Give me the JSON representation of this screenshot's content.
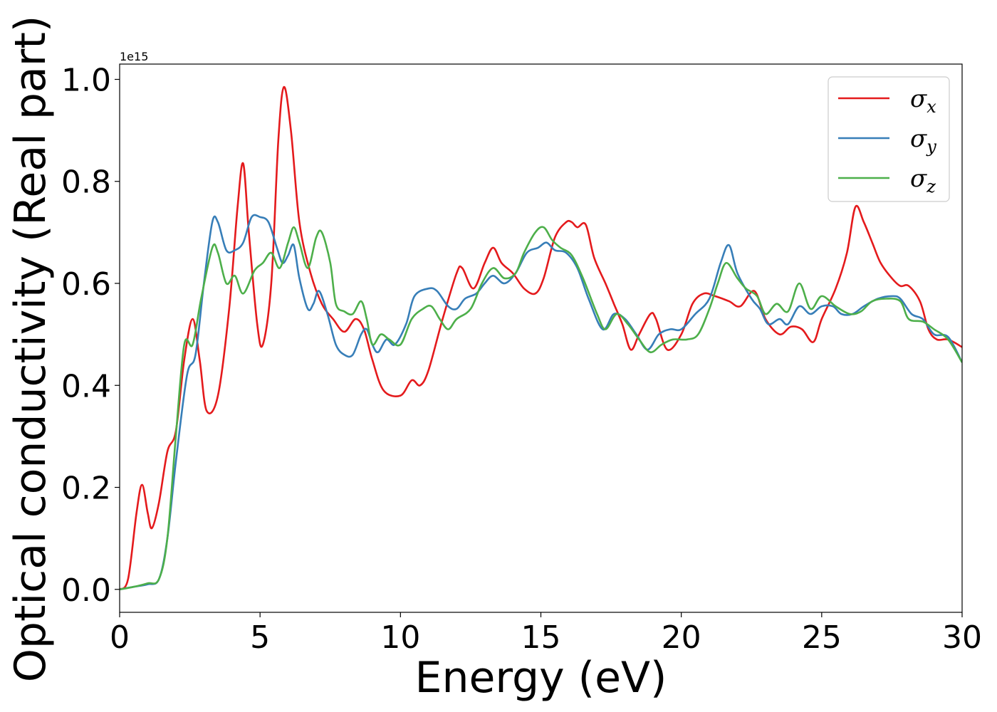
{
  "chart_data": {
    "type": "line",
    "title": "",
    "xlabel": "Energy (eV)",
    "ylabel": "Optical conductivity (Real part)",
    "xlim": [
      0,
      30
    ],
    "ylim": [
      -0.045,
      1.03
    ],
    "y_scale_label": "1e15",
    "xticks": [
      0,
      5,
      10,
      15,
      20,
      25,
      30
    ],
    "xtick_labels": [
      "0",
      "5",
      "10",
      "15",
      "20",
      "25",
      "30"
    ],
    "yticks": [
      0.0,
      0.2,
      0.4,
      0.6,
      0.8,
      1.0
    ],
    "ytick_labels": [
      "0.0",
      "0.2",
      "0.4",
      "0.6",
      "0.8",
      "1.0"
    ],
    "grid": false,
    "legend_position": "top-right",
    "series": [
      {
        "name": "σx",
        "symbol": "σ",
        "subscript": "x",
        "color": "#e41a1c",
        "points": [
          [
            0,
            0
          ],
          [
            0.3,
            0.02
          ],
          [
            0.6,
            0.15
          ],
          [
            0.8,
            0.205
          ],
          [
            1.0,
            0.15
          ],
          [
            1.15,
            0.12
          ],
          [
            1.4,
            0.17
          ],
          [
            1.7,
            0.27
          ],
          [
            2.0,
            0.31
          ],
          [
            2.3,
            0.45
          ],
          [
            2.6,
            0.53
          ],
          [
            2.85,
            0.45
          ],
          [
            3.1,
            0.35
          ],
          [
            3.5,
            0.38
          ],
          [
            3.9,
            0.55
          ],
          [
            4.2,
            0.75
          ],
          [
            4.4,
            0.835
          ],
          [
            4.6,
            0.7
          ],
          [
            4.9,
            0.52
          ],
          [
            5.1,
            0.48
          ],
          [
            5.4,
            0.6
          ],
          [
            5.65,
            0.88
          ],
          [
            5.85,
            0.985
          ],
          [
            6.1,
            0.9
          ],
          [
            6.4,
            0.72
          ],
          [
            6.8,
            0.62
          ],
          [
            7.2,
            0.56
          ],
          [
            7.6,
            0.53
          ],
          [
            8.0,
            0.505
          ],
          [
            8.4,
            0.53
          ],
          [
            8.7,
            0.51
          ],
          [
            9.0,
            0.45
          ],
          [
            9.4,
            0.39
          ],
          [
            10.0,
            0.38
          ],
          [
            10.4,
            0.41
          ],
          [
            10.7,
            0.4
          ],
          [
            11.0,
            0.43
          ],
          [
            11.5,
            0.53
          ],
          [
            12.0,
            0.62
          ],
          [
            12.2,
            0.63
          ],
          [
            12.6,
            0.59
          ],
          [
            13.0,
            0.64
          ],
          [
            13.3,
            0.67
          ],
          [
            13.6,
            0.64
          ],
          [
            14.0,
            0.62
          ],
          [
            14.4,
            0.59
          ],
          [
            14.8,
            0.58
          ],
          [
            15.1,
            0.61
          ],
          [
            15.5,
            0.69
          ],
          [
            15.9,
            0.72
          ],
          [
            16.1,
            0.72
          ],
          [
            16.3,
            0.71
          ],
          [
            16.6,
            0.715
          ],
          [
            16.9,
            0.65
          ],
          [
            17.3,
            0.6
          ],
          [
            17.6,
            0.56
          ],
          [
            17.9,
            0.52
          ],
          [
            18.2,
            0.47
          ],
          [
            18.5,
            0.5
          ],
          [
            18.9,
            0.54
          ],
          [
            19.1,
            0.53
          ],
          [
            19.5,
            0.47
          ],
          [
            20.0,
            0.5
          ],
          [
            20.4,
            0.56
          ],
          [
            20.8,
            0.58
          ],
          [
            21.2,
            0.575
          ],
          [
            21.7,
            0.565
          ],
          [
            22.1,
            0.555
          ],
          [
            22.6,
            0.585
          ],
          [
            23.0,
            0.53
          ],
          [
            23.5,
            0.5
          ],
          [
            23.9,
            0.515
          ],
          [
            24.3,
            0.51
          ],
          [
            24.7,
            0.485
          ],
          [
            25.0,
            0.53
          ],
          [
            25.5,
            0.59
          ],
          [
            25.9,
            0.66
          ],
          [
            26.2,
            0.75
          ],
          [
            26.5,
            0.72
          ],
          [
            26.8,
            0.68
          ],
          [
            27.1,
            0.64
          ],
          [
            27.5,
            0.61
          ],
          [
            27.8,
            0.595
          ],
          [
            28.1,
            0.595
          ],
          [
            28.5,
            0.565
          ],
          [
            28.8,
            0.51
          ],
          [
            29.1,
            0.49
          ],
          [
            29.5,
            0.49
          ],
          [
            30.0,
            0.475
          ]
        ]
      },
      {
        "name": "σy",
        "symbol": "σ",
        "subscript": "y",
        "color": "#377eb8",
        "points": [
          [
            0,
            0
          ],
          [
            0.5,
            0.005
          ],
          [
            1.0,
            0.01
          ],
          [
            1.4,
            0.02
          ],
          [
            1.7,
            0.1
          ],
          [
            2.0,
            0.25
          ],
          [
            2.4,
            0.42
          ],
          [
            2.7,
            0.46
          ],
          [
            3.0,
            0.6
          ],
          [
            3.3,
            0.72
          ],
          [
            3.5,
            0.72
          ],
          [
            3.8,
            0.665
          ],
          [
            4.1,
            0.665
          ],
          [
            4.4,
            0.68
          ],
          [
            4.7,
            0.73
          ],
          [
            5.0,
            0.73
          ],
          [
            5.3,
            0.72
          ],
          [
            5.6,
            0.67
          ],
          [
            5.8,
            0.64
          ],
          [
            6.0,
            0.655
          ],
          [
            6.2,
            0.675
          ],
          [
            6.4,
            0.61
          ],
          [
            6.7,
            0.55
          ],
          [
            6.9,
            0.56
          ],
          [
            7.1,
            0.585
          ],
          [
            7.4,
            0.54
          ],
          [
            7.7,
            0.48
          ],
          [
            8.0,
            0.46
          ],
          [
            8.3,
            0.46
          ],
          [
            8.6,
            0.5
          ],
          [
            8.8,
            0.51
          ],
          [
            9.0,
            0.48
          ],
          [
            9.2,
            0.465
          ],
          [
            9.5,
            0.49
          ],
          [
            9.8,
            0.48
          ],
          [
            10.2,
            0.52
          ],
          [
            10.5,
            0.575
          ],
          [
            11.0,
            0.59
          ],
          [
            11.3,
            0.585
          ],
          [
            11.7,
            0.555
          ],
          [
            12.0,
            0.55
          ],
          [
            12.3,
            0.57
          ],
          [
            12.7,
            0.58
          ],
          [
            13.0,
            0.6
          ],
          [
            13.3,
            0.615
          ],
          [
            13.7,
            0.6
          ],
          [
            14.1,
            0.62
          ],
          [
            14.5,
            0.66
          ],
          [
            14.9,
            0.67
          ],
          [
            15.2,
            0.68
          ],
          [
            15.5,
            0.665
          ],
          [
            15.9,
            0.66
          ],
          [
            16.3,
            0.63
          ],
          [
            16.7,
            0.57
          ],
          [
            17.2,
            0.51
          ],
          [
            17.6,
            0.54
          ],
          [
            18.0,
            0.53
          ],
          [
            18.4,
            0.5
          ],
          [
            18.8,
            0.47
          ],
          [
            19.2,
            0.5
          ],
          [
            19.6,
            0.51
          ],
          [
            20.0,
            0.51
          ],
          [
            20.5,
            0.54
          ],
          [
            21.0,
            0.57
          ],
          [
            21.4,
            0.64
          ],
          [
            21.7,
            0.675
          ],
          [
            22.0,
            0.62
          ],
          [
            22.5,
            0.57
          ],
          [
            22.8,
            0.55
          ],
          [
            23.1,
            0.52
          ],
          [
            23.5,
            0.53
          ],
          [
            23.8,
            0.52
          ],
          [
            24.2,
            0.555
          ],
          [
            24.6,
            0.54
          ],
          [
            25.0,
            0.555
          ],
          [
            25.4,
            0.555
          ],
          [
            25.7,
            0.54
          ],
          [
            26.1,
            0.54
          ],
          [
            26.5,
            0.555
          ],
          [
            27.0,
            0.57
          ],
          [
            27.5,
            0.575
          ],
          [
            27.8,
            0.57
          ],
          [
            28.2,
            0.54
          ],
          [
            28.6,
            0.53
          ],
          [
            29.0,
            0.5
          ],
          [
            29.5,
            0.495
          ],
          [
            30.0,
            0.445
          ]
        ]
      },
      {
        "name": "σz",
        "symbol": "σ",
        "subscript": "z",
        "color": "#4daf4a",
        "points": [
          [
            0,
            0
          ],
          [
            0.5,
            0.005
          ],
          [
            1.0,
            0.012
          ],
          [
            1.4,
            0.02
          ],
          [
            1.7,
            0.1
          ],
          [
            2.0,
            0.3
          ],
          [
            2.3,
            0.48
          ],
          [
            2.6,
            0.48
          ],
          [
            2.9,
            0.57
          ],
          [
            3.3,
            0.67
          ],
          [
            3.5,
            0.66
          ],
          [
            3.8,
            0.6
          ],
          [
            4.1,
            0.615
          ],
          [
            4.4,
            0.58
          ],
          [
            4.8,
            0.625
          ],
          [
            5.1,
            0.64
          ],
          [
            5.4,
            0.66
          ],
          [
            5.7,
            0.63
          ],
          [
            6.0,
            0.68
          ],
          [
            6.2,
            0.71
          ],
          [
            6.4,
            0.68
          ],
          [
            6.7,
            0.63
          ],
          [
            7.0,
            0.69
          ],
          [
            7.2,
            0.7
          ],
          [
            7.5,
            0.64
          ],
          [
            7.7,
            0.56
          ],
          [
            8.0,
            0.545
          ],
          [
            8.3,
            0.54
          ],
          [
            8.6,
            0.565
          ],
          [
            8.8,
            0.53
          ],
          [
            9.0,
            0.48
          ],
          [
            9.3,
            0.5
          ],
          [
            9.6,
            0.49
          ],
          [
            10.0,
            0.48
          ],
          [
            10.4,
            0.53
          ],
          [
            10.8,
            0.55
          ],
          [
            11.1,
            0.555
          ],
          [
            11.4,
            0.53
          ],
          [
            11.7,
            0.51
          ],
          [
            12.0,
            0.53
          ],
          [
            12.5,
            0.55
          ],
          [
            12.9,
            0.6
          ],
          [
            13.3,
            0.63
          ],
          [
            13.7,
            0.61
          ],
          [
            14.1,
            0.62
          ],
          [
            14.4,
            0.66
          ],
          [
            14.8,
            0.7
          ],
          [
            15.1,
            0.71
          ],
          [
            15.4,
            0.685
          ],
          [
            15.7,
            0.67
          ],
          [
            16.1,
            0.655
          ],
          [
            16.5,
            0.61
          ],
          [
            17.0,
            0.54
          ],
          [
            17.3,
            0.51
          ],
          [
            17.7,
            0.54
          ],
          [
            18.1,
            0.52
          ],
          [
            18.5,
            0.49
          ],
          [
            18.9,
            0.465
          ],
          [
            19.3,
            0.48
          ],
          [
            19.7,
            0.49
          ],
          [
            20.2,
            0.49
          ],
          [
            20.6,
            0.5
          ],
          [
            21.0,
            0.55
          ],
          [
            21.3,
            0.6
          ],
          [
            21.6,
            0.64
          ],
          [
            22.0,
            0.61
          ],
          [
            22.3,
            0.59
          ],
          [
            22.7,
            0.575
          ],
          [
            23.0,
            0.54
          ],
          [
            23.4,
            0.56
          ],
          [
            23.8,
            0.545
          ],
          [
            24.2,
            0.6
          ],
          [
            24.6,
            0.55
          ],
          [
            25.0,
            0.575
          ],
          [
            25.5,
            0.555
          ],
          [
            26.0,
            0.54
          ],
          [
            26.4,
            0.545
          ],
          [
            26.8,
            0.565
          ],
          [
            27.3,
            0.57
          ],
          [
            27.8,
            0.565
          ],
          [
            28.1,
            0.53
          ],
          [
            28.6,
            0.525
          ],
          [
            29.0,
            0.51
          ],
          [
            29.5,
            0.49
          ],
          [
            30.0,
            0.445
          ]
        ]
      }
    ]
  }
}
